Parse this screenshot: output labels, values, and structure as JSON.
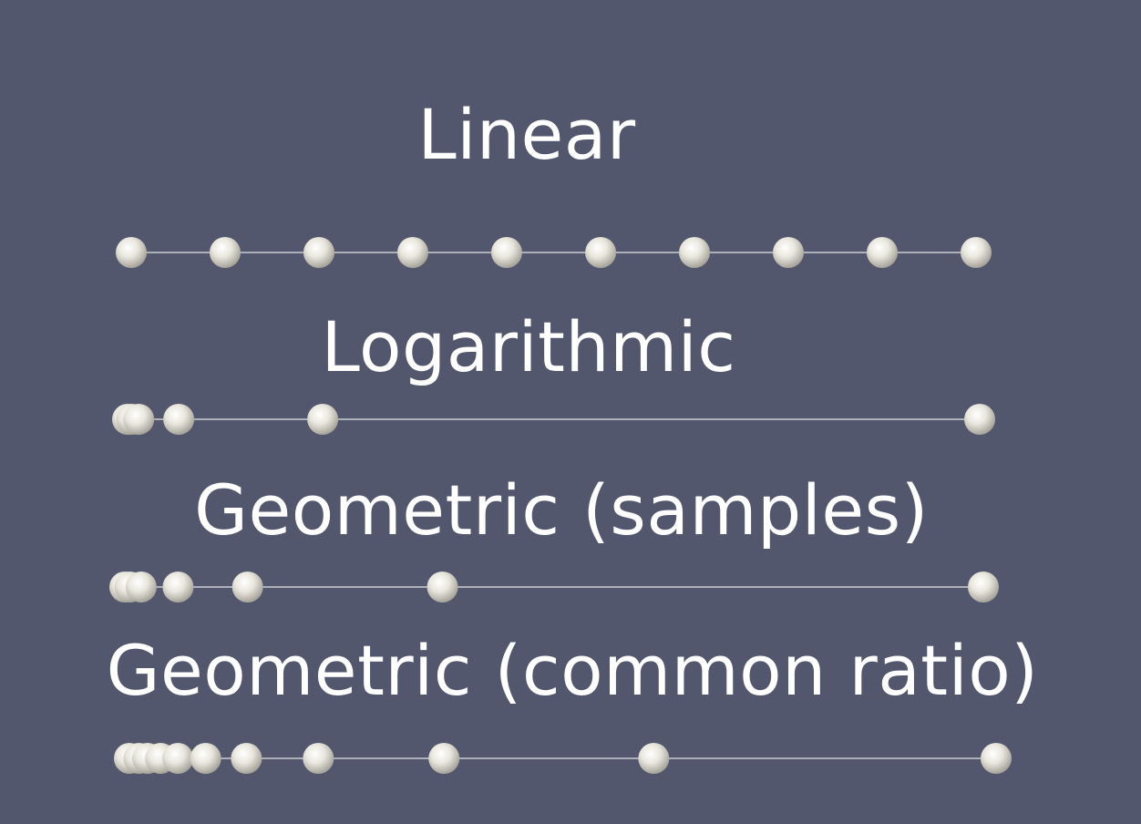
{
  "colors": {
    "background": "#52576d",
    "sphere": "#e8e6dc",
    "line": "#ffffff",
    "text": "#ffffff"
  },
  "rows": [
    {
      "id": "linear",
      "title": "Linear",
      "points": [
        0,
        0.1111,
        0.2222,
        0.3333,
        0.4444,
        0.5556,
        0.6667,
        0.7778,
        0.8889,
        1.0
      ]
    },
    {
      "id": "log",
      "title": "Logarithmic",
      "points": [
        0,
        0.005,
        0.013,
        0.06,
        0.229,
        1.0
      ]
    },
    {
      "id": "geo-samples",
      "title": "Geometric (samples)",
      "points": [
        0,
        0.006,
        0.019,
        0.062,
        0.143,
        0.37,
        1.0
      ]
    },
    {
      "id": "geo-ratio",
      "title": "Geometric (common ratio)",
      "points": [
        0,
        0.011,
        0.021,
        0.036,
        0.056,
        0.088,
        0.135,
        0.218,
        0.363,
        0.605,
        1.0
      ]
    }
  ]
}
